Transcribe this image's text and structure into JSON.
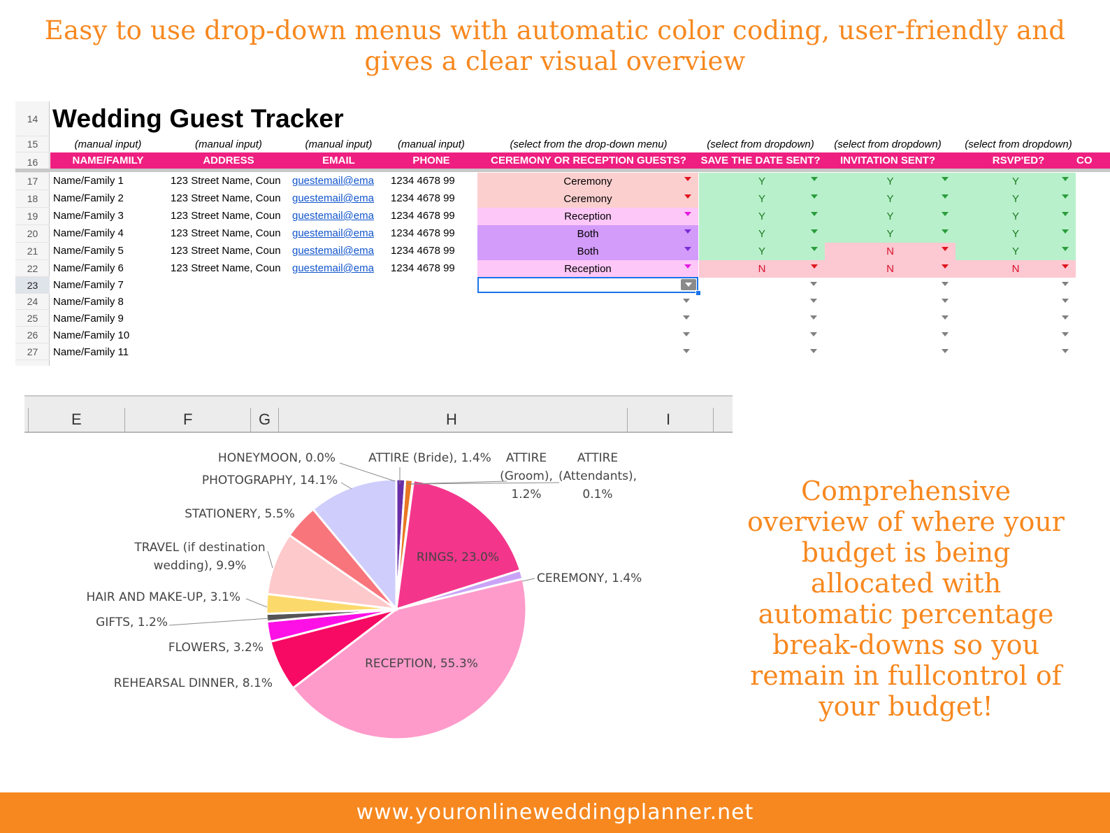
{
  "headline": "Easy to use drop-down menus with automatic color coding, user-friendly and gives a clear visual overview",
  "sheet": {
    "title": "Wedding Guest Tracker",
    "row_numbers": [
      "14",
      "15",
      "16",
      "17",
      "18",
      "19",
      "20",
      "21",
      "22",
      "23",
      "24",
      "25",
      "26",
      "27"
    ],
    "hints": [
      "(manual input)",
      "(manual input)",
      "(manual input)",
      "(manual input)",
      "(select from the drop-down menu)",
      "(select from dropdown)",
      "(select from dropdown)",
      "(select from dropdown)"
    ],
    "headers": [
      "NAME/FAMILY",
      "ADDRESS",
      "EMAIL",
      "PHONE",
      "CEREMONY OR RECEPTION GUESTS?",
      "SAVE THE DATE SENT?",
      "INVITATION SENT?",
      "RSVP'ED?",
      "CO"
    ],
    "rows": [
      {
        "name": "Name/Family 1",
        "address": "123 Street Name, Coun",
        "email": "guestemail@ema",
        "phone": "1234 4678 99",
        "guests": "Ceremony",
        "std": "Y",
        "inv": "Y",
        "rsvp": "Y"
      },
      {
        "name": "Name/Family 2",
        "address": "123 Street Name, Coun",
        "email": "guestemail@ema",
        "phone": "1234 4678 99",
        "guests": "Ceremony",
        "std": "Y",
        "inv": "Y",
        "rsvp": "Y"
      },
      {
        "name": "Name/Family 3",
        "address": "123 Street Name, Coun",
        "email": "guestemail@ema",
        "phone": "1234 4678 99",
        "guests": "Reception",
        "std": "Y",
        "inv": "Y",
        "rsvp": "Y"
      },
      {
        "name": "Name/Family 4",
        "address": "123 Street Name, Coun",
        "email": "guestemail@ema",
        "phone": "1234 4678 99",
        "guests": "Both",
        "std": "Y",
        "inv": "Y",
        "rsvp": "Y"
      },
      {
        "name": "Name/Family 5",
        "address": "123 Street Name, Coun",
        "email": "guestemail@ema",
        "phone": "1234 4678 99",
        "guests": "Both",
        "std": "Y",
        "inv": "N",
        "rsvp": "Y"
      },
      {
        "name": "Name/Family 6",
        "address": "123 Street Name, Coun",
        "email": "guestemail@ema",
        "phone": "1234 4678 99",
        "guests": "Reception",
        "std": "N",
        "inv": "N",
        "rsvp": "N"
      },
      {
        "name": "Name/Family 7"
      },
      {
        "name": "Name/Family 8"
      },
      {
        "name": "Name/Family 9"
      },
      {
        "name": "Name/Family 10"
      },
      {
        "name": "Name/Family 11"
      }
    ],
    "colors": {
      "header_pink": "#ee1f80",
      "ceremony": "#fccfcf",
      "reception": "#fdc7f7",
      "both": "#d39bfa",
      "yes": "#b8f0cb",
      "no": "#fcc8d2",
      "yes_text": "#1d7a23",
      "no_text": "#d8102a"
    }
  },
  "excel_columns": [
    "E",
    "F",
    "G",
    "H",
    "I"
  ],
  "chart_data": {
    "type": "pie",
    "slices": [
      {
        "label": "ATTIRE (Bride)",
        "value": 1.4,
        "color": "#6a2fa8",
        "text": "ATTIRE (Bride), 1.4%"
      },
      {
        "label": "ATTIRE (Groom)",
        "value": 1.2,
        "color": "#e97723",
        "text": "ATTIRE (Groom), 1.2%"
      },
      {
        "label": "ATTIRE (Attendants)",
        "value": 0.1,
        "color": "#f9b783",
        "text": "ATTIRE (Attendants), 0.1%"
      },
      {
        "label": "RINGS",
        "value": 23.0,
        "color": "#f3368c",
        "text": "RINGS, 23.0%"
      },
      {
        "label": "CEREMONY",
        "value": 1.4,
        "color": "#c9a3f8",
        "text": "CEREMONY, 1.4%"
      },
      {
        "label": "RECEPTION",
        "value": 55.3,
        "color": "#fe9bcb",
        "text": "RECEPTION, 55.3%"
      },
      {
        "label": "REHEARSAL DINNER",
        "value": 8.1,
        "color": "#f70a63",
        "text": "REHEARSAL DINNER, 8.1%"
      },
      {
        "label": "FLOWERS",
        "value": 3.2,
        "color": "#fc10e6",
        "text": "FLOWERS, 3.2%"
      },
      {
        "label": "GIFTS",
        "value": 1.2,
        "color": "#555555",
        "text": "GIFTS, 1.2%"
      },
      {
        "label": "HAIR AND MAKE-UP",
        "value": 3.1,
        "color": "#fcd96b",
        "text": "HAIR AND MAKE-UP, 3.1%"
      },
      {
        "label": "TRAVEL (if destination wedding)",
        "value": 9.9,
        "color": "#fec9cb",
        "text": "TRAVEL (if destination wedding), 9.9%"
      },
      {
        "label": "STATIONERY",
        "value": 5.5,
        "color": "#f8757c",
        "text": "STATIONERY, 5.5%"
      },
      {
        "label": "PHOTOGRAPHY",
        "value": 14.1,
        "color": "#cfcdfc",
        "text": "PHOTOGRAPHY, 14.1%"
      },
      {
        "label": "HONEYMOON",
        "value": 0.0,
        "color": "#dddddd",
        "text": "HONEYMOON, 0.0%"
      }
    ]
  },
  "side_text": "Comprehensive overview of where your budget is being allocated with automatic percentage break-downs so you remain in fullcontrol of your budget!",
  "footer": "www.youronlineweddingplanner.net"
}
